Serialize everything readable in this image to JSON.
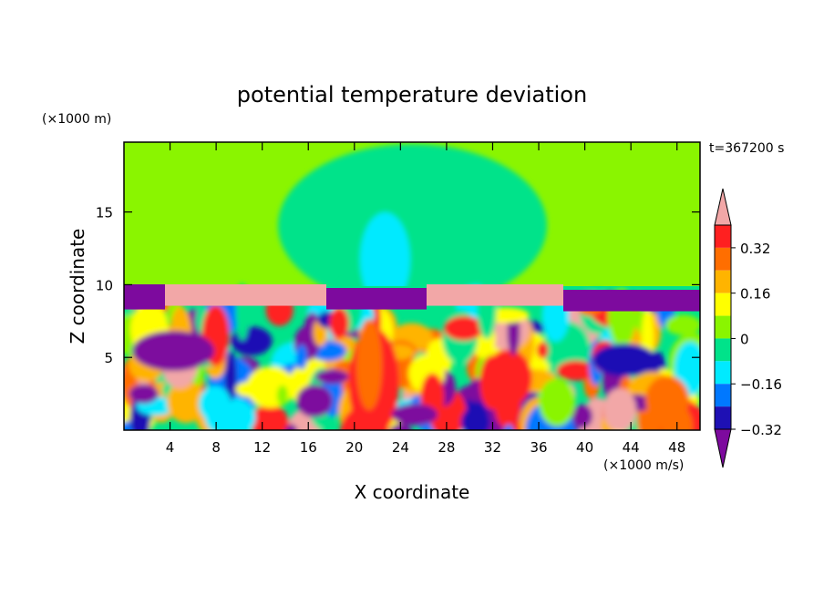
{
  "chart_data": {
    "type": "heatmap",
    "title": "potential temperature deviation",
    "xlabel": "X coordinate",
    "ylabel": "Z coordinate",
    "x_unit": "(×1000 m/s)",
    "y_unit": "(×1000 m)",
    "time_label": "t=367200 s",
    "xlim": [
      0,
      50
    ],
    "ylim": [
      0,
      19.8
    ],
    "x_ticks": [
      4,
      8,
      12,
      16,
      20,
      24,
      28,
      32,
      36,
      40,
      44,
      48
    ],
    "y_ticks": [
      5,
      10,
      15
    ],
    "colorbar": {
      "levels": [
        -0.4,
        -0.32,
        -0.24,
        -0.16,
        -0.08,
        0,
        0.08,
        0.16,
        0.24,
        0.32,
        0.4
      ],
      "labeled_ticks": [
        "0.32",
        "0.16",
        "0",
        "−0.16",
        "−0.32"
      ],
      "colors": [
        "#7d0a9e",
        "#1e10b4",
        "#0078ff",
        "#00eaff",
        "#00e38a",
        "#8af500",
        "#ffff00",
        "#ffb400",
        "#ff6e00",
        "#ff2020",
        "#f2a7a7"
      ],
      "extend": "both"
    },
    "layers": {
      "upper_region_value": 0,
      "interface_height": 9.9,
      "interface_band_value": 0.4,
      "interface_band_negative_value": -0.4,
      "lower_region": "alternating positive and negative anomalies between -0.4 and 0.4"
    }
  }
}
